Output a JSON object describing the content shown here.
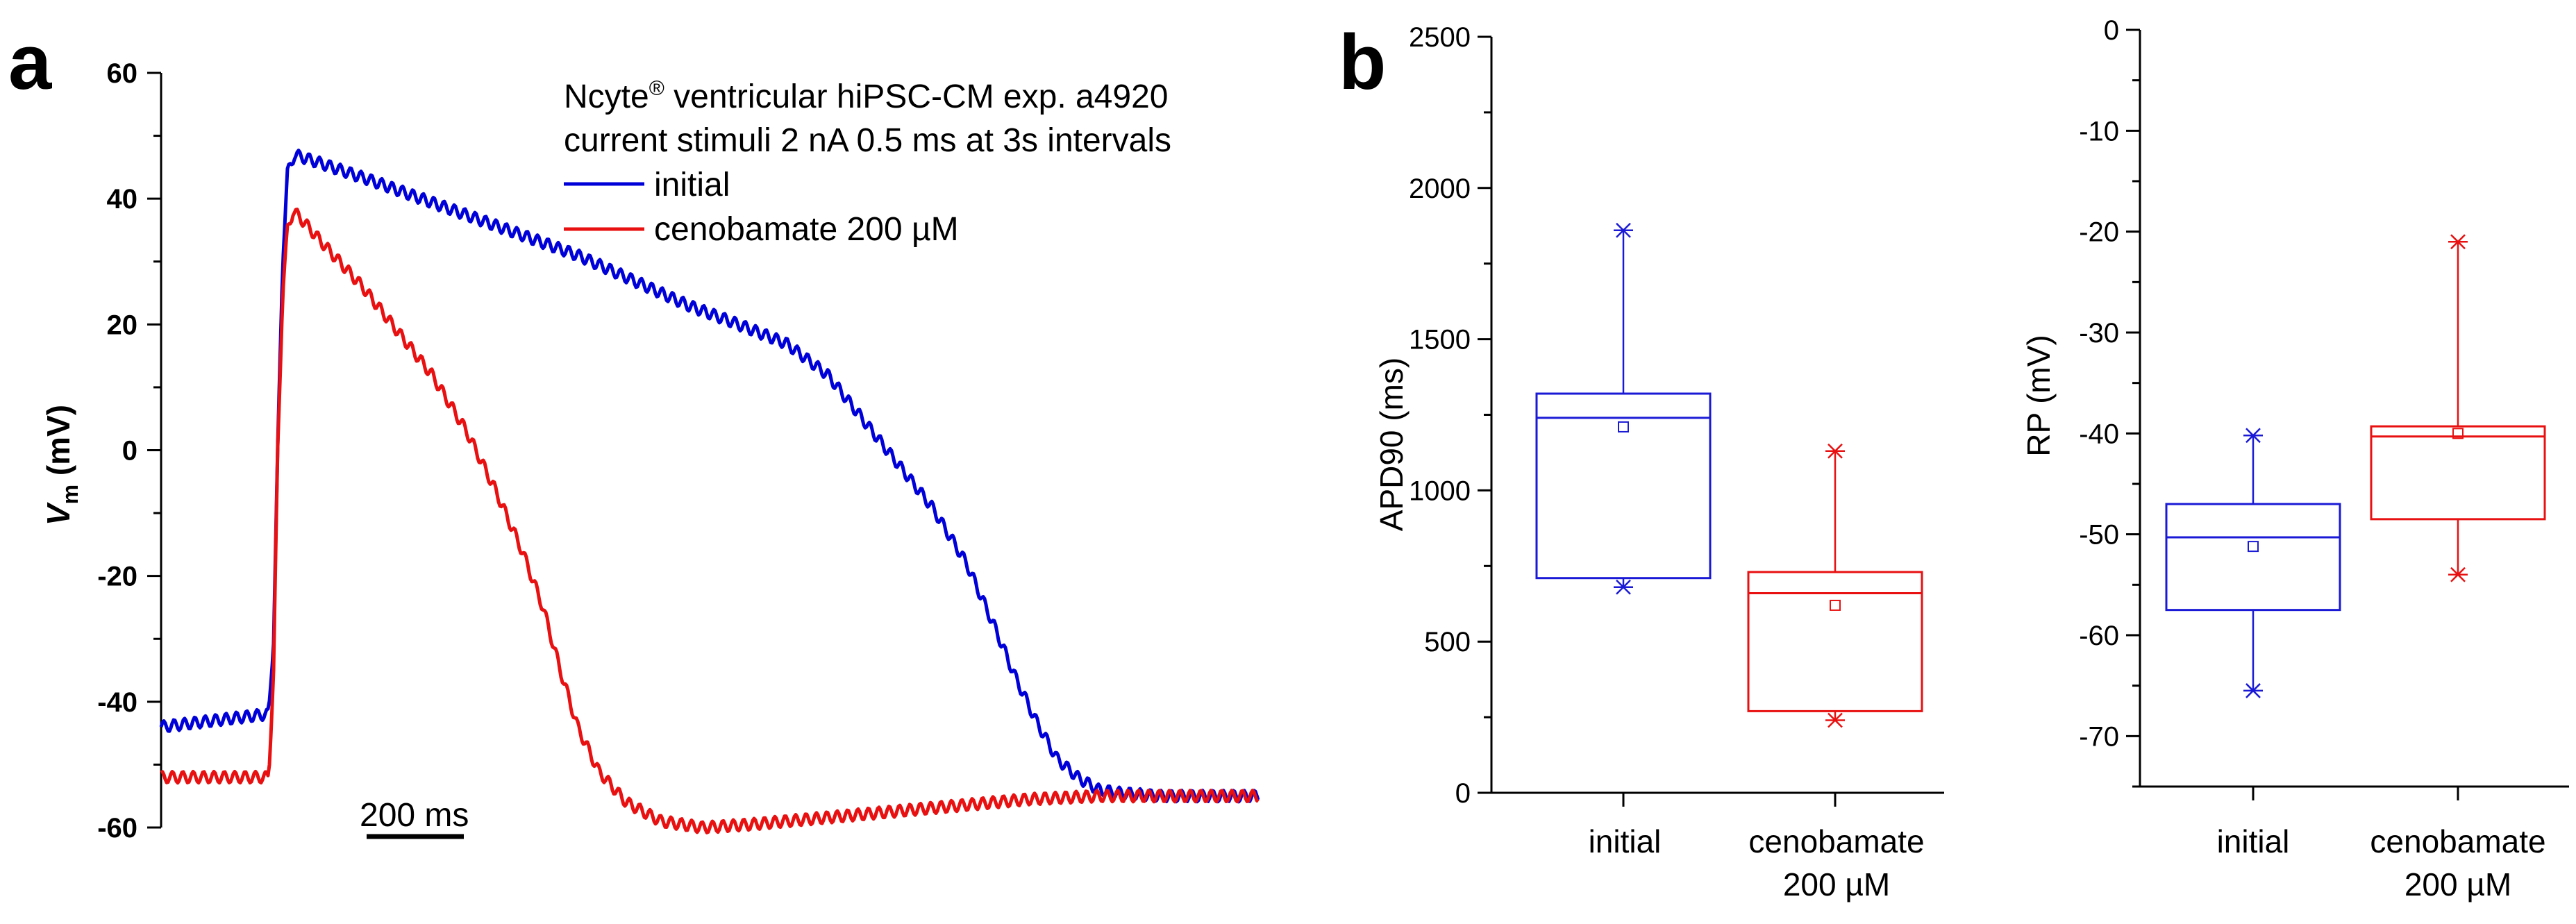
{
  "panels": {
    "a": "a",
    "b": "b"
  },
  "chart_data": [
    {
      "id": "trace",
      "type": "line",
      "ylabel_main": "V",
      "ylabel_sub": "m",
      "ylabel_unit": " (mV)",
      "ylim": [
        -60,
        60
      ],
      "yticks": [
        "60",
        "40",
        "20",
        "0",
        "-20",
        "-40",
        "-60"
      ],
      "xlim_ms": [
        0,
        1360
      ],
      "scale_bar": {
        "label": "200 ms",
        "length_ms": 200,
        "start_ms": 250
      },
      "annotation": {
        "line1_prefix": "Ncyte",
        "line1_sup": "®",
        "line1_suffix": " ventricular hiPSC-CM   exp. a4920",
        "line2": "current stimuli 2 nA 0.5 ms at 3s intervals"
      },
      "series": [
        {
          "name": "initial",
          "color": "#0000d8",
          "points": [
            [
              0,
              -44
            ],
            [
              150,
              -42
            ],
            [
              155,
              -42
            ],
            [
              162,
              -30
            ],
            [
              168,
              0
            ],
            [
              175,
              30
            ],
            [
              182,
              44
            ],
            [
              192,
              47
            ],
            [
              220,
              46
            ],
            [
              300,
              43
            ],
            [
              400,
              39
            ],
            [
              500,
              35
            ],
            [
              600,
              31
            ],
            [
              700,
              26
            ],
            [
              760,
              23
            ],
            [
              820,
              20.5
            ],
            [
              900,
              17
            ],
            [
              960,
              12
            ],
            [
              1010,
              5
            ],
            [
              1060,
              -2
            ],
            [
              1110,
              -9
            ],
            [
              1160,
              -18
            ],
            [
              1200,
              -28
            ],
            [
              1230,
              -36
            ],
            [
              1260,
              -43
            ],
            [
              1290,
              -49
            ],
            [
              1320,
              -52
            ],
            [
              1350,
              -54
            ],
            [
              1380,
              -54.5
            ],
            [
              1440,
              -55
            ],
            [
              1500,
              -55
            ],
            [
              1560,
              -55
            ],
            [
              1580,
              -55
            ]
          ]
        },
        {
          "name": "cenobamate 200 µM",
          "color": "#e81010",
          "points": [
            [
              0,
              -52
            ],
            [
              155,
              -52
            ],
            [
              162,
              -35
            ],
            [
              168,
              0
            ],
            [
              175,
              25
            ],
            [
              182,
              35
            ],
            [
              190,
              38
            ],
            [
              200,
              37
            ],
            [
              240,
              32
            ],
            [
              290,
              26
            ],
            [
              340,
              19
            ],
            [
              390,
              12
            ],
            [
              440,
              3
            ],
            [
              480,
              -6
            ],
            [
              520,
              -16
            ],
            [
              550,
              -25
            ],
            [
              575,
              -35
            ],
            [
              600,
              -44
            ],
            [
              630,
              -51
            ],
            [
              670,
              -56
            ],
            [
              720,
              -59
            ],
            [
              780,
              -60
            ],
            [
              850,
              -59.5
            ],
            [
              950,
              -58.5
            ],
            [
              1050,
              -57.5
            ],
            [
              1150,
              -56.5
            ],
            [
              1250,
              -55.5
            ],
            [
              1350,
              -55
            ],
            [
              1450,
              -55
            ],
            [
              1580,
              -55
            ]
          ]
        }
      ]
    },
    {
      "id": "apd90",
      "type": "box",
      "ylabel": "APD90 (ms)",
      "ylim": [
        0,
        2500
      ],
      "yticks": [
        "2500",
        "2000",
        "1500",
        "1000",
        "500",
        "0"
      ],
      "categories": [
        "initial",
        "cenobamate",
        "200 µM"
      ],
      "boxes": [
        {
          "name": "initial",
          "color": "#1a1ad6",
          "min": 680,
          "q1": 710,
          "median": 1240,
          "mean": 1210,
          "q3": 1320,
          "max": 1860
        },
        {
          "name": "cenobamate 200 µM",
          "color": "#e81010",
          "min": 240,
          "q1": 270,
          "median": 660,
          "mean": 620,
          "q3": 730,
          "max": 1130
        }
      ]
    },
    {
      "id": "rp",
      "type": "box",
      "ylabel": "RP (mV)",
      "ylim": [
        -75,
        0
      ],
      "yticks": [
        "0",
        "-10",
        "-20",
        "-30",
        "-40",
        "-50",
        "-60",
        "-70"
      ],
      "categories": [
        "initial",
        "cenobamate",
        "200 µM"
      ],
      "boxes": [
        {
          "name": "initial",
          "color": "#1a1ad6",
          "min": -65.5,
          "q1": -57.5,
          "median": -50.3,
          "mean": -51.2,
          "q3": -47,
          "max": -40.2
        },
        {
          "name": "cenobamate 200 µM",
          "color": "#e81010",
          "min": -54,
          "q1": -48.5,
          "median": -40.3,
          "mean": -40,
          "q3": -39.3,
          "max": -21
        }
      ]
    }
  ]
}
